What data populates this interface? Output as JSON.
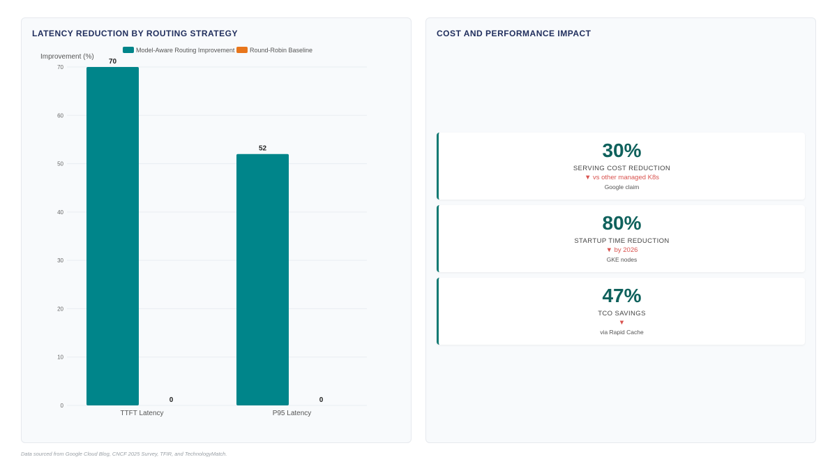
{
  "left_panel": {
    "title": "LATENCY REDUCTION BY ROUTING STRATEGY"
  },
  "chart_data": {
    "type": "bar",
    "title": "LATENCY REDUCTION BY ROUTING STRATEGY",
    "ylabel": "Improvement (%)",
    "xlabel": "",
    "categories": [
      "TTFT Latency",
      "P95 Latency"
    ],
    "series": [
      {
        "name": "Model-Aware Routing Improvement",
        "values": [
          70,
          52
        ],
        "color": "#00858a"
      },
      {
        "name": "Round-Robin Baseline",
        "values": [
          0,
          0
        ],
        "color": "#e8761c"
      }
    ],
    "ylim": [
      0,
      70
    ],
    "yticks": [
      0,
      10,
      20,
      30,
      40,
      50,
      60,
      70
    ],
    "legend_position": "top",
    "grid": true,
    "data_labels": true
  },
  "right_panel": {
    "title": "COST AND PERFORMANCE IMPACT",
    "cards": [
      {
        "value": "30%",
        "label": "SERVING COST REDUCTION",
        "change": "▼ vs other managed K8s",
        "note": "Google claim"
      },
      {
        "value": "80%",
        "label": "STARTUP TIME REDUCTION",
        "change": "▼ by 2026",
        "note": "GKE nodes"
      },
      {
        "value": "47%",
        "label": "TCO SAVINGS",
        "change": "▼",
        "note": "via Rapid Cache"
      }
    ]
  },
  "footer": {
    "source": "Data sourced from Google Cloud Blog, CNCF 2025 Survey, TFIR, and TechnologyMatch."
  },
  "colors": {
    "accent": "#0f615c",
    "bar_primary": "#00858a",
    "bar_secondary": "#e8761c",
    "change_down": "#d9534f",
    "title": "#1f2d5c"
  }
}
